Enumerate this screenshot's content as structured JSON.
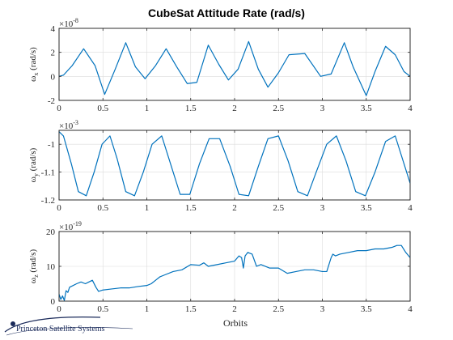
{
  "figure": {
    "title": "CubeSat Attitude Rate (rad/s)",
    "xlabel": "Orbits",
    "line_color": "#0072bd",
    "logo_text": "Princeton Satellite Systems",
    "logo_color": "#1a2a5a"
  },
  "chart_data": [
    {
      "type": "line",
      "title": "CubeSat Attitude Rate (rad/s)",
      "ylabel_main": "ω",
      "ylabel_sub": "x",
      "ylabel_unit": " (rad/s)",
      "exponent_base": "×10",
      "exponent_power": "-8",
      "xlim": [
        0,
        4
      ],
      "ylim": [
        -2,
        4
      ],
      "xticks": [
        0,
        0.5,
        1,
        1.5,
        2,
        2.5,
        3,
        3.5,
        4
      ],
      "xtick_labels": [
        "0",
        "0.5",
        "1",
        "1.5",
        "2",
        "2.5",
        "3",
        "3.5",
        "4"
      ],
      "yticks": [
        -2,
        0,
        2,
        4
      ],
      "ytick_labels": [
        "-2",
        "0",
        "2",
        "4"
      ],
      "grid": true,
      "series": [
        {
          "x": [
            0,
            0.05,
            0.15,
            0.28,
            0.41,
            0.52,
            0.64,
            0.76,
            0.87,
            0.98,
            1.1,
            1.22,
            1.34,
            1.46,
            1.57,
            1.7,
            1.82,
            1.93,
            2.04,
            2.16,
            2.27,
            2.38,
            2.5,
            2.62,
            2.8,
            2.98,
            3.1,
            3.25,
            3.35,
            3.5,
            3.6,
            3.72,
            3.83,
            3.93,
            4.0
          ],
          "y": [
            0,
            0.1,
            0.9,
            2.3,
            0.9,
            -1.5,
            0.6,
            2.8,
            0.8,
            -0.2,
            0.9,
            2.3,
            0.8,
            -0.6,
            -0.5,
            2.6,
            1.0,
            -0.3,
            0.6,
            2.9,
            0.6,
            -0.9,
            0.3,
            1.8,
            1.9,
            0.0,
            0.2,
            2.8,
            0.8,
            -1.6,
            0.4,
            2.5,
            1.8,
            0.4,
            0.0
          ]
        }
      ]
    },
    {
      "type": "line",
      "ylabel_main": "ω",
      "ylabel_sub": "y",
      "ylabel_unit": " (rad/s)",
      "exponent_base": "×10",
      "exponent_power": "-3",
      "xlim": [
        0,
        4
      ],
      "ylim": [
        -1.2,
        -0.95
      ],
      "xticks": [
        0,
        0.5,
        1,
        1.5,
        2,
        2.5,
        3,
        3.5,
        4
      ],
      "xtick_labels": [
        "0",
        "0.5",
        "1",
        "1.5",
        "2",
        "2.5",
        "3",
        "3.5",
        "4"
      ],
      "yticks": [
        -1.2,
        -1.1,
        -1
      ],
      "ytick_labels": [
        "-1.2",
        "-1.1",
        "-1"
      ],
      "grid": true,
      "series": [
        {
          "x": [
            0,
            0.05,
            0.14,
            0.22,
            0.31,
            0.4,
            0.49,
            0.58,
            0.66,
            0.76,
            0.86,
            0.96,
            1.06,
            1.17,
            1.27,
            1.38,
            1.49,
            1.6,
            1.71,
            1.83,
            1.95,
            2.05,
            2.16,
            2.27,
            2.38,
            2.5,
            2.61,
            2.72,
            2.83,
            2.93,
            3.05,
            3.16,
            3.27,
            3.38,
            3.49,
            3.6,
            3.72,
            3.83,
            3.94,
            4.0
          ],
          "y": [
            -0.955,
            -0.97,
            -1.07,
            -1.17,
            -1.185,
            -1.1,
            -1.0,
            -0.97,
            -1.05,
            -1.17,
            -1.185,
            -1.1,
            -1.0,
            -0.97,
            -1.07,
            -1.18,
            -1.18,
            -1.07,
            -0.98,
            -0.98,
            -1.08,
            -1.18,
            -1.185,
            -1.08,
            -0.98,
            -0.97,
            -1.06,
            -1.17,
            -1.185,
            -1.1,
            -1.0,
            -0.97,
            -1.06,
            -1.17,
            -1.185,
            -1.1,
            -0.99,
            -0.97,
            -1.08,
            -1.14
          ]
        }
      ]
    },
    {
      "type": "line",
      "ylabel_main": "ω",
      "ylabel_sub": "z",
      "ylabel_unit": " (rad/s)",
      "exponent_base": "×10",
      "exponent_power": "-19",
      "xlim": [
        0,
        4
      ],
      "ylim": [
        0,
        20
      ],
      "xticks": [
        0,
        0.5,
        1,
        1.5,
        2,
        2.5,
        3,
        3.5,
        4
      ],
      "xtick_labels": [
        "0",
        "0.5",
        "1",
        "1.5",
        "2",
        "2.5",
        "3",
        "3.5",
        "4"
      ],
      "yticks": [
        0,
        10,
        20
      ],
      "ytick_labels": [
        "0",
        "10",
        "20"
      ],
      "grid": true,
      "series": [
        {
          "x": [
            0,
            0.02,
            0.04,
            0.06,
            0.08,
            0.1,
            0.12,
            0.16,
            0.2,
            0.25,
            0.3,
            0.34,
            0.38,
            0.42,
            0.45,
            0.5,
            0.6,
            0.7,
            0.8,
            0.9,
            1.0,
            1.05,
            1.1,
            1.15,
            1.2,
            1.3,
            1.4,
            1.5,
            1.6,
            1.65,
            1.7,
            1.8,
            1.9,
            2.0,
            2.05,
            2.08,
            2.1,
            2.12,
            2.15,
            2.2,
            2.25,
            2.3,
            2.4,
            2.5,
            2.6,
            2.7,
            2.8,
            2.9,
            3.0,
            3.05,
            3.1,
            3.12,
            3.15,
            3.2,
            3.3,
            3.4,
            3.5,
            3.6,
            3.7,
            3.8,
            3.85,
            3.9,
            3.95,
            4.0
          ],
          "y": [
            2.0,
            0.5,
            1.5,
            0.2,
            3.0,
            2.5,
            4.0,
            4.5,
            5.0,
            5.5,
            5.0,
            5.5,
            6.0,
            4.0,
            2.8,
            3.2,
            3.5,
            3.8,
            3.8,
            4.2,
            4.5,
            5.0,
            6.0,
            7.0,
            7.5,
            8.5,
            9.0,
            10.5,
            10.3,
            11.0,
            10.0,
            10.5,
            11.0,
            11.5,
            13.0,
            12.5,
            9.5,
            13.0,
            14.0,
            13.5,
            10.0,
            10.5,
            9.5,
            9.5,
            8.0,
            8.5,
            9.0,
            9.0,
            8.5,
            8.5,
            12.5,
            13.5,
            13.0,
            13.5,
            14.0,
            14.5,
            14.5,
            15.0,
            15.0,
            15.5,
            16.0,
            16.0,
            14.0,
            12.5
          ]
        }
      ]
    }
  ]
}
